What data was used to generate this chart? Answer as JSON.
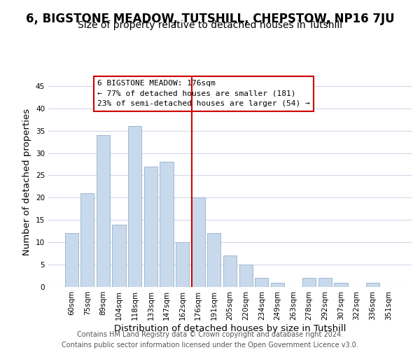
{
  "title": "6, BIGSTONE MEADOW, TUTSHILL, CHEPSTOW, NP16 7JU",
  "subtitle": "Size of property relative to detached houses in Tutshill",
  "xlabel": "Distribution of detached houses by size in Tutshill",
  "ylabel": "Number of detached properties",
  "bar_labels": [
    "60sqm",
    "75sqm",
    "89sqm",
    "104sqm",
    "118sqm",
    "133sqm",
    "147sqm",
    "162sqm",
    "176sqm",
    "191sqm",
    "205sqm",
    "220sqm",
    "234sqm",
    "249sqm",
    "263sqm",
    "278sqm",
    "292sqm",
    "307sqm",
    "322sqm",
    "336sqm",
    "351sqm"
  ],
  "bar_values": [
    12,
    21,
    34,
    14,
    36,
    27,
    28,
    10,
    20,
    12,
    7,
    5,
    2,
    1,
    0,
    2,
    2,
    1,
    0,
    1,
    0
  ],
  "bar_color": "#c9d9ec",
  "bar_edge_color": "#a0b8d0",
  "highlight_index": 8,
  "highlight_line_color": "#cc0000",
  "annotation_box_edge_color": "#cc0000",
  "annotation_text_line1": "6 BIGSTONE MEADOW: 176sqm",
  "annotation_text_line2": "← 77% of detached houses are smaller (181)",
  "annotation_text_line3": "23% of semi-detached houses are larger (54) →",
  "ylim": [
    0,
    47
  ],
  "yticks": [
    0,
    5,
    10,
    15,
    20,
    25,
    30,
    35,
    40,
    45
  ],
  "footer_line1": "Contains HM Land Registry data © Crown copyright and database right 2024.",
  "footer_line2": "Contains public sector information licensed under the Open Government Licence v3.0.",
  "title_fontsize": 12,
  "subtitle_fontsize": 10,
  "axis_label_fontsize": 9.5,
  "tick_fontsize": 7.5,
  "annotation_fontsize": 8,
  "footer_fontsize": 7,
  "background_color": "#ffffff",
  "grid_color": "#d0d8e8"
}
